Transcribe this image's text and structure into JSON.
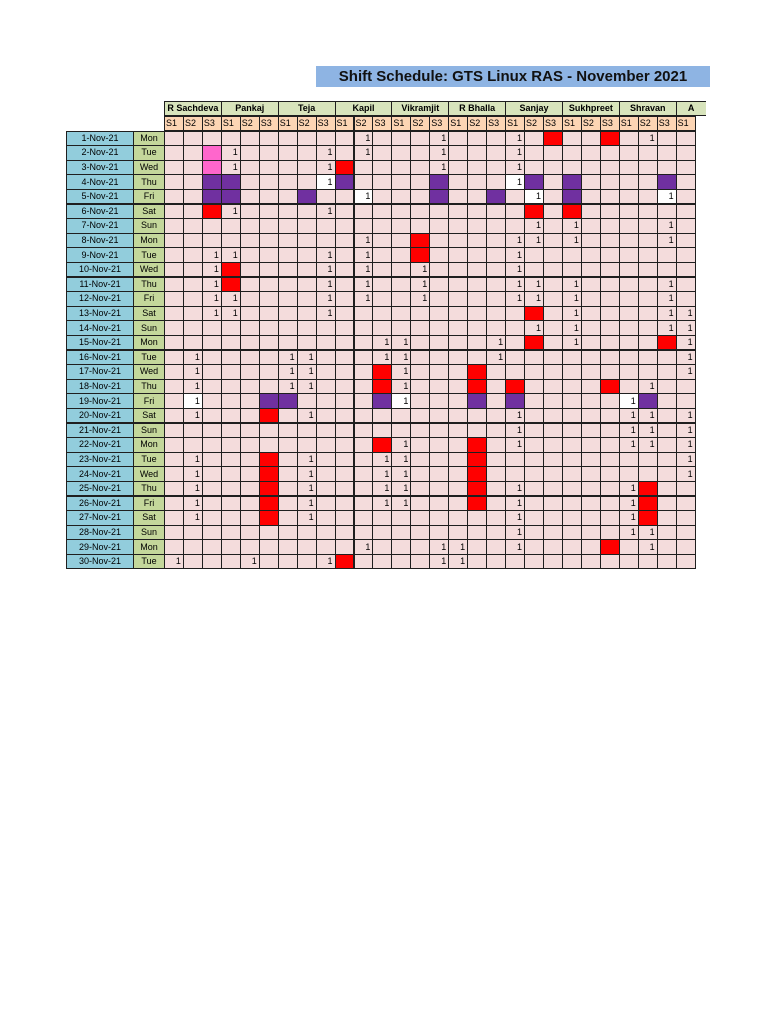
{
  "title": "Shift Schedule: GTS Linux RAS - November 2021",
  "employees": [
    "R Sachdeva",
    "Pankaj",
    "Teja",
    "Kapil",
    "Vikramjit",
    "R Bhalla",
    "Sanjay",
    "Sukhpreet",
    "Shravan",
    "A"
  ],
  "shift_labels": [
    "S1",
    "S2",
    "S3",
    "S1",
    "S2",
    "S3",
    "S1",
    "S2",
    "S3",
    "S1",
    "S2",
    "S3",
    "S1",
    "S2",
    "S3",
    "S1",
    "S2",
    "S3",
    "S1",
    "S2",
    "S3",
    "S1",
    "S2",
    "S3",
    "S1",
    "S2",
    "S3",
    "S1"
  ],
  "colors": {
    "red": "#ff0000",
    "purple": "#7030a0",
    "pink": "#ff66cc",
    "white": "#ffffff",
    "grid": "#f4dcdc"
  },
  "rows": [
    {
      "date": "1-Nov-21",
      "day": "Mon",
      "values": {
        "10": "1",
        "14": "1",
        "18": "1",
        "25": "1"
      },
      "colors": {
        "20": "red",
        "23": "red"
      }
    },
    {
      "date": "2-Nov-21",
      "day": "Tue",
      "values": {
        "3": "1",
        "8": "1",
        "10": "1",
        "14": "1",
        "18": "1"
      },
      "colors": {
        "2": "pink"
      }
    },
    {
      "date": "3-Nov-21",
      "day": "Wed",
      "values": {
        "3": "1",
        "8": "1",
        "14": "1",
        "18": "1"
      },
      "colors": {
        "2": "pink",
        "9": "red"
      }
    },
    {
      "date": "4-Nov-21",
      "day": "Thu",
      "values": {
        "8": "1",
        "18": "1"
      },
      "colors": {
        "2": "purple",
        "3": "purple",
        "8": "white",
        "9": "purple",
        "14": "purple",
        "18": "white",
        "19": "purple",
        "21": "purple",
        "26": "purple"
      }
    },
    {
      "date": "5-Nov-21",
      "day": "Fri",
      "values": {
        "10": "1",
        "19": "1",
        "26": "1"
      },
      "colors": {
        "2": "purple",
        "3": "purple",
        "7": "purple",
        "10": "white",
        "14": "purple",
        "17": "purple",
        "19": "white",
        "21": "purple",
        "26": "white"
      }
    },
    {
      "date": "6-Nov-21",
      "day": "Sat",
      "values": {
        "3": "1",
        "8": "1"
      },
      "colors": {
        "2": "red",
        "19": "red",
        "21": "red"
      }
    },
    {
      "date": "7-Nov-21",
      "day": "Sun",
      "values": {
        "19": "1",
        "21": "1",
        "26": "1"
      },
      "colors": {}
    },
    {
      "date": "8-Nov-21",
      "day": "Mon",
      "values": {
        "10": "1",
        "18": "1",
        "19": "1",
        "21": "1",
        "26": "1"
      },
      "colors": {
        "13": "red"
      }
    },
    {
      "date": "9-Nov-21",
      "day": "Tue",
      "values": {
        "2": "1",
        "3": "1",
        "8": "1",
        "10": "1",
        "18": "1"
      },
      "colors": {
        "13": "red"
      }
    },
    {
      "date": "10-Nov-21",
      "day": "Wed",
      "values": {
        "2": "1",
        "8": "1",
        "10": "1",
        "13": "1",
        "18": "1"
      },
      "colors": {
        "3": "red"
      }
    },
    {
      "date": "11-Nov-21",
      "day": "Thu",
      "values": {
        "2": "1",
        "8": "1",
        "10": "1",
        "13": "1",
        "18": "1",
        "19": "1",
        "21": "1",
        "26": "1"
      },
      "colors": {
        "3": "red"
      }
    },
    {
      "date": "12-Nov-21",
      "day": "Fri",
      "values": {
        "2": "1",
        "3": "1",
        "8": "1",
        "10": "1",
        "13": "1",
        "18": "1",
        "19": "1",
        "21": "1",
        "26": "1"
      },
      "colors": {}
    },
    {
      "date": "13-Nov-21",
      "day": "Sat",
      "values": {
        "2": "1",
        "3": "1",
        "8": "1",
        "21": "1",
        "26": "1",
        "27": "1"
      },
      "colors": {
        "19": "red"
      }
    },
    {
      "date": "14-Nov-21",
      "day": "Sun",
      "values": {
        "19": "1",
        "21": "1",
        "26": "1",
        "27": "1"
      },
      "colors": {}
    },
    {
      "date": "15-Nov-21",
      "day": "Mon",
      "values": {
        "11": "1",
        "12": "1",
        "17": "1",
        "21": "1",
        "27": "1"
      },
      "colors": {
        "19": "red",
        "26": "red"
      }
    },
    {
      "date": "16-Nov-21",
      "day": "Tue",
      "values": {
        "1": "1",
        "6": "1",
        "7": "1",
        "11": "1",
        "12": "1",
        "17": "1",
        "27": "1"
      },
      "colors": {}
    },
    {
      "date": "17-Nov-21",
      "day": "Wed",
      "values": {
        "1": "1",
        "6": "1",
        "7": "1",
        "12": "1",
        "27": "1"
      },
      "colors": {
        "11": "red",
        "16": "red"
      }
    },
    {
      "date": "18-Nov-21",
      "day": "Thu",
      "values": {
        "1": "1",
        "6": "1",
        "7": "1",
        "12": "1",
        "25": "1"
      },
      "colors": {
        "11": "red",
        "16": "red",
        "18": "red",
        "23": "red"
      }
    },
    {
      "date": "19-Nov-21",
      "day": "Fri",
      "values": {
        "1": "1",
        "12": "1",
        "24": "1"
      },
      "colors": {
        "1": "white",
        "5": "purple",
        "6": "purple",
        "11": "purple",
        "12": "white",
        "16": "purple",
        "18": "purple",
        "24": "white",
        "25": "purple"
      }
    },
    {
      "date": "20-Nov-21",
      "day": "Sat",
      "values": {
        "1": "1",
        "7": "1",
        "18": "1",
        "24": "1",
        "25": "1",
        "27": "1"
      },
      "colors": {
        "5": "red"
      }
    },
    {
      "date": "21-Nov-21",
      "day": "Sun",
      "values": {
        "18": "1",
        "24": "1",
        "25": "1",
        "27": "1"
      },
      "colors": {}
    },
    {
      "date": "22-Nov-21",
      "day": "Mon",
      "values": {
        "12": "1",
        "18": "1",
        "24": "1",
        "25": "1",
        "27": "1"
      },
      "colors": {
        "11": "red",
        "16": "red"
      }
    },
    {
      "date": "23-Nov-21",
      "day": "Tue",
      "values": {
        "1": "1",
        "7": "1",
        "11": "1",
        "12": "1",
        "27": "1"
      },
      "colors": {
        "5": "red",
        "16": "red"
      }
    },
    {
      "date": "24-Nov-21",
      "day": "Wed",
      "values": {
        "1": "1",
        "7": "1",
        "11": "1",
        "12": "1",
        "27": "1"
      },
      "colors": {
        "5": "red",
        "16": "red"
      }
    },
    {
      "date": "25-Nov-21",
      "day": "Thu",
      "values": {
        "1": "1",
        "7": "1",
        "11": "1",
        "12": "1",
        "18": "1",
        "24": "1"
      },
      "colors": {
        "5": "red",
        "16": "red",
        "25": "red"
      }
    },
    {
      "date": "26-Nov-21",
      "day": "Fri",
      "values": {
        "1": "1",
        "7": "1",
        "11": "1",
        "12": "1",
        "18": "1",
        "24": "1"
      },
      "colors": {
        "5": "red",
        "16": "red",
        "25": "red"
      }
    },
    {
      "date": "27-Nov-21",
      "day": "Sat",
      "values": {
        "1": "1",
        "7": "1",
        "18": "1",
        "24": "1"
      },
      "colors": {
        "5": "red",
        "25": "red"
      }
    },
    {
      "date": "28-Nov-21",
      "day": "Sun",
      "values": {
        "18": "1",
        "24": "1",
        "25": "1"
      },
      "colors": {}
    },
    {
      "date": "29-Nov-21",
      "day": "Mon",
      "values": {
        "10": "1",
        "14": "1",
        "15": "1",
        "18": "1",
        "25": "1"
      },
      "colors": {
        "23": "red"
      }
    },
    {
      "date": "30-Nov-21",
      "day": "Tue",
      "values": {
        "0": "1",
        "4": "1",
        "8": "1",
        "14": "1",
        "15": "1"
      },
      "colors": {
        "9": "red"
      }
    }
  ]
}
